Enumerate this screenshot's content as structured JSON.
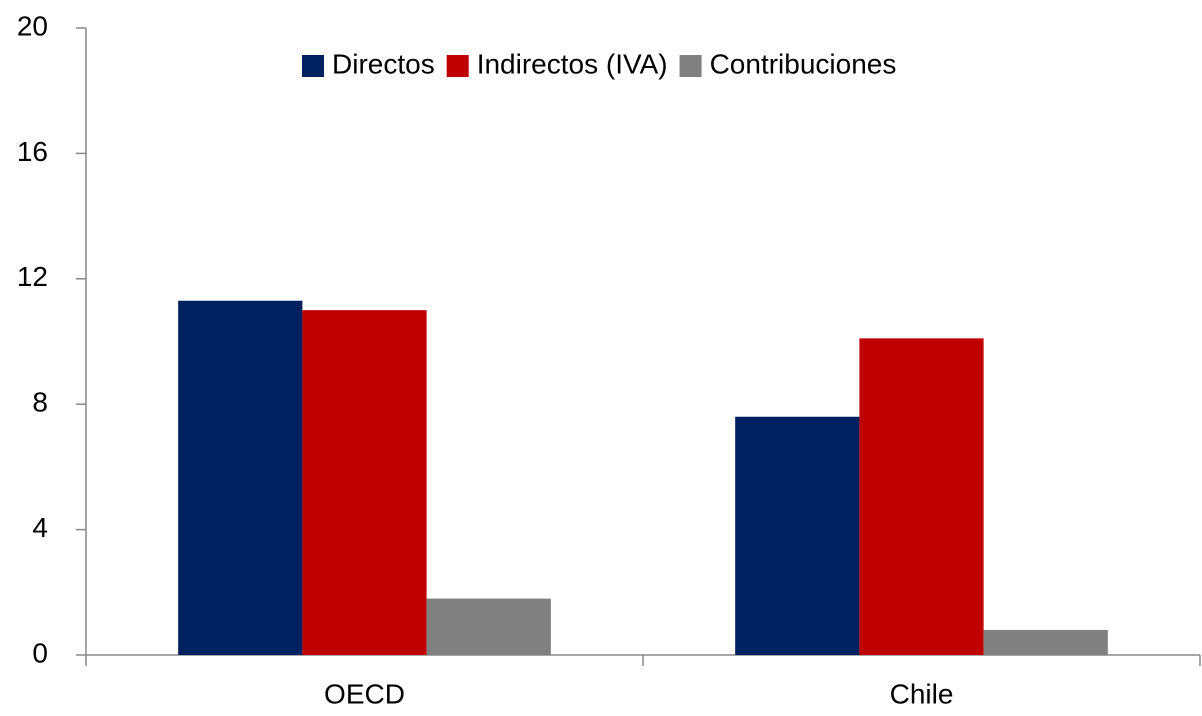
{
  "chart_data": {
    "type": "bar",
    "categories": [
      "OECD",
      "Chile"
    ],
    "series": [
      {
        "name": "Directos",
        "color": "#002060",
        "values": [
          11.3,
          7.6
        ]
      },
      {
        "name": "Indirectos (IVA)",
        "color": "#c00000",
        "values": [
          11.0,
          10.1
        ]
      },
      {
        "name": "Contribuciones",
        "color": "#808080",
        "values": [
          1.8,
          0.8
        ]
      }
    ],
    "ylim": [
      0,
      20
    ],
    "yticks": [
      0,
      4,
      8,
      12,
      16,
      20
    ],
    "legend": "top"
  }
}
